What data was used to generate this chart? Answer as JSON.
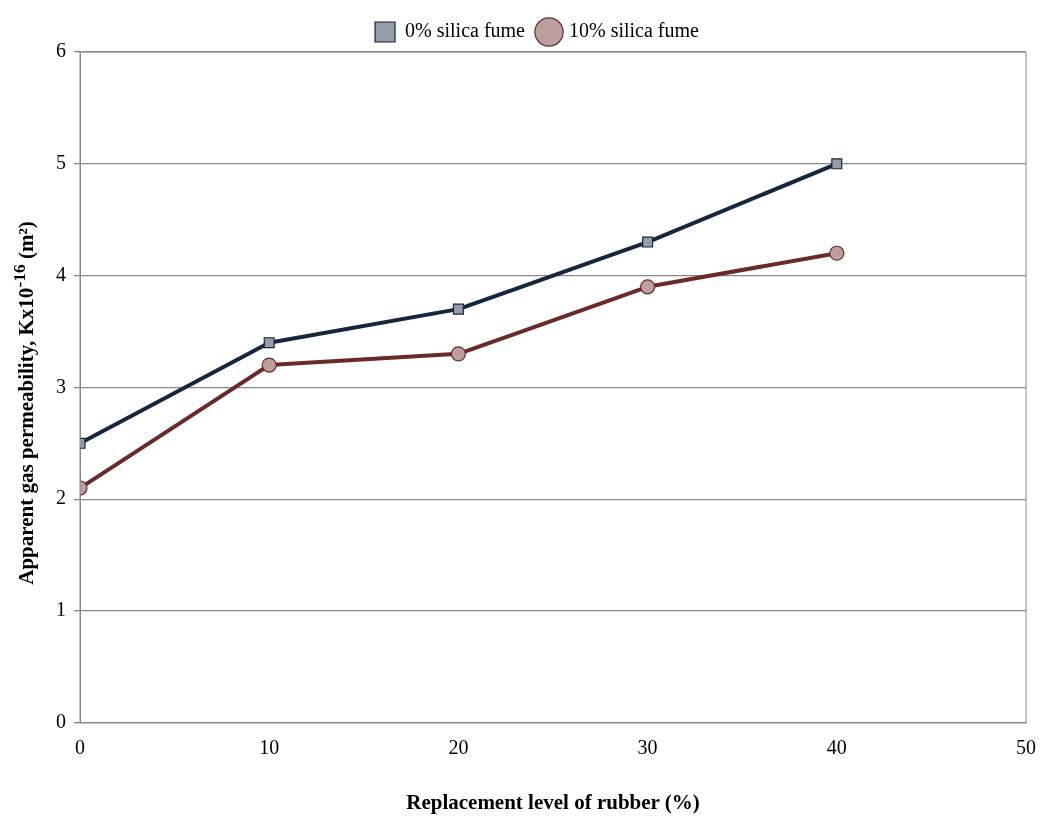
{
  "chart_data": {
    "type": "line",
    "xlabel": "Replacement level of rubber (%)",
    "ylabel": "Apparent gas permeability, Kx10$^{-16}$ (m²)",
    "x": [
      0,
      10,
      20,
      30,
      40
    ],
    "series": [
      {
        "name": "0% silica fume",
        "color": "#16263f",
        "marker": "square",
        "values": [
          2.5,
          3.4,
          3.7,
          4.3,
          5.0
        ]
      },
      {
        "name": "10% silica fume",
        "color": "#6b2a2a",
        "marker": "circle",
        "values": [
          2.1,
          3.2,
          3.3,
          3.9,
          4.2
        ]
      }
    ],
    "xlim": [
      0,
      50
    ],
    "xticks": [
      0,
      10,
      20,
      30,
      40,
      50
    ],
    "ylim": [
      0,
      6
    ],
    "yticks": [
      0,
      1,
      2,
      3,
      4,
      5,
      6
    ],
    "grid": "y",
    "legend": "top",
    "line_style": "solid"
  }
}
